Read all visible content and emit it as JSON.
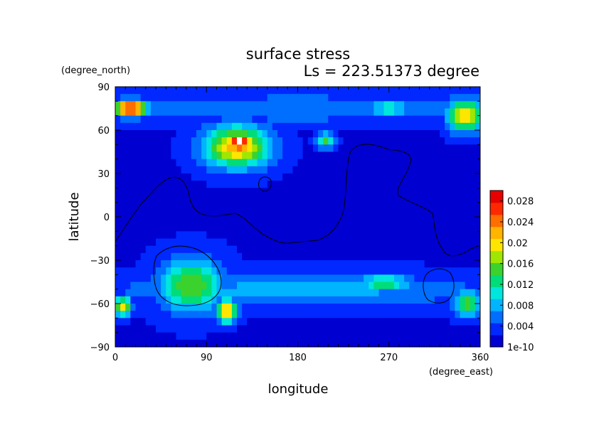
{
  "chart_data": {
    "type": "heatmap",
    "title": "surface stress",
    "subtitle": "Ls = 223.51373 degree",
    "xlabel": "longitude",
    "ylabel": "latitude",
    "xunit": "(degree_east)",
    "yunit": "(degree_north)",
    "xlim": [
      0,
      360
    ],
    "ylim": [
      -90,
      90
    ],
    "xticks": [
      "0",
      "90",
      "180",
      "270",
      "360"
    ],
    "yticks": [
      "90",
      "60",
      "30",
      "0",
      "−30",
      "−60",
      "−90"
    ],
    "colorbar": {
      "range": [
        0,
        0.03
      ],
      "tick_values": [
        0.028,
        0.024,
        0.02,
        0.016,
        0.012,
        0.008,
        0.004,
        0
      ],
      "tick_labels": [
        "0.028",
        "0.024",
        "0.02",
        "0.016",
        "0.012",
        "0.008",
        "0.004",
        "1e-10"
      ],
      "colors": [
        "#0000d0",
        "#0028ff",
        "#006eff",
        "#00b4ff",
        "#00e6dc",
        "#00dc78",
        "#3cd22d",
        "#a0e600",
        "#ffe600",
        "#ffb400",
        "#ff6e00",
        "#ff2800",
        "#e60000"
      ]
    },
    "background_level": 0.002,
    "features": [
      {
        "name": "north polar band",
        "lon": [
          0,
          360
        ],
        "lat": [
          66,
          84
        ],
        "value": 0.007
      },
      {
        "name": "northern jet core",
        "lon": [
          110,
          135
        ],
        "lat": [
          45,
          58
        ],
        "value": 0.032
      },
      {
        "name": "northern jet",
        "lon": [
          90,
          150
        ],
        "lat": [
          35,
          62
        ],
        "value": 0.022
      },
      {
        "name": "north-west polar maximum",
        "lon": [
          0,
          30
        ],
        "lat": [
          70,
          80
        ],
        "value": 0.032
      },
      {
        "name": "north-east polar maximum",
        "lon": [
          330,
          360
        ],
        "lat": [
          60,
          80
        ],
        "value": 0.022
      },
      {
        "name": "north polar patch",
        "lon": [
          250,
          290
        ],
        "lat": [
          70,
          80
        ],
        "value": 0.012
      },
      {
        "name": "mid-latitude spot",
        "lon": [
          200,
          215
        ],
        "lat": [
          48,
          58
        ],
        "value": 0.016
      },
      {
        "name": "southern basin",
        "lon": [
          45,
          105
        ],
        "lat": [
          -65,
          -30
        ],
        "value": 0.016
      },
      {
        "name": "southern spot",
        "lon": [
          100,
          120
        ],
        "lat": [
          -72,
          -58
        ],
        "value": 0.024
      },
      {
        "name": "southern west spot",
        "lon": [
          0,
          15
        ],
        "lat": [
          -68,
          -56
        ],
        "value": 0.02
      },
      {
        "name": "southern band",
        "lon": [
          0,
          360
        ],
        "lat": [
          -62,
          -40
        ],
        "value": 0.008
      },
      {
        "name": "southern east spot",
        "lon": [
          335,
          360
        ],
        "lat": [
          -68,
          -52
        ],
        "value": 0.016
      },
      {
        "name": "southern mid spot",
        "lon": [
          240,
          290
        ],
        "lat": [
          -52,
          -40
        ],
        "value": 0.013
      }
    ]
  }
}
